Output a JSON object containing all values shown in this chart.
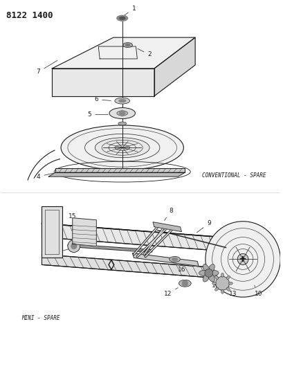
{
  "title": "8122 1400",
  "conventional_label": "CONVENTIONAL - SPARE",
  "mini_label": "MINI - SPARE",
  "bg_color": "#ffffff",
  "lc": "#1a1a1a",
  "title_fontsize": 9,
  "label_fontsize": 5.5,
  "num_fontsize": 6.5,
  "fig_w": 4.1,
  "fig_h": 5.33,
  "dpi": 100
}
